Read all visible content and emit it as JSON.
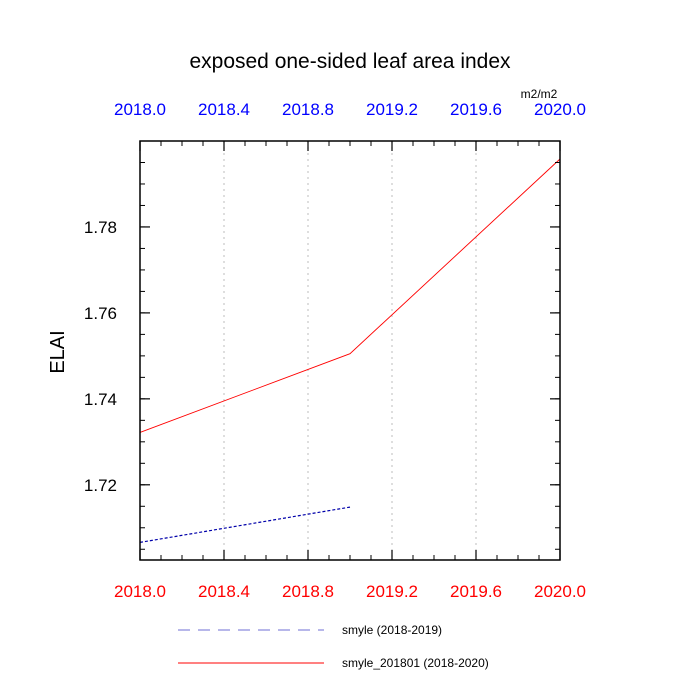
{
  "chart_data": {
    "type": "line",
    "title": "exposed one-sided leaf area index",
    "ylabel": "ELAI",
    "units": "m2/m2",
    "xlim": [
      2018.0,
      2020.0
    ],
    "ylim": [
      1.7025,
      1.8
    ],
    "x_ticks": [
      "2018.0",
      "2018.4",
      "2018.8",
      "2019.2",
      "2019.6",
      "2020.0"
    ],
    "y_ticks": [
      "1.72",
      "1.74",
      "1.76",
      "1.78"
    ],
    "top_tick_color": "#0000ff",
    "bottom_tick_color": "#ff0000",
    "grid": "vertical dotted",
    "legend_position": "bottom",
    "series": [
      {
        "name": "smyle (2018-2019)",
        "color": "#0000aa",
        "dash": "dashed",
        "x": [
          2018.0,
          2019.0
        ],
        "y": [
          1.7066,
          1.7148
        ]
      },
      {
        "name": "smyle_201801 (2018-2020)",
        "color": "#ff0000",
        "dash": "solid",
        "x": [
          2018.0,
          2019.0,
          2020.0
        ],
        "y": [
          1.7322,
          1.7505,
          1.7958
        ]
      }
    ]
  }
}
